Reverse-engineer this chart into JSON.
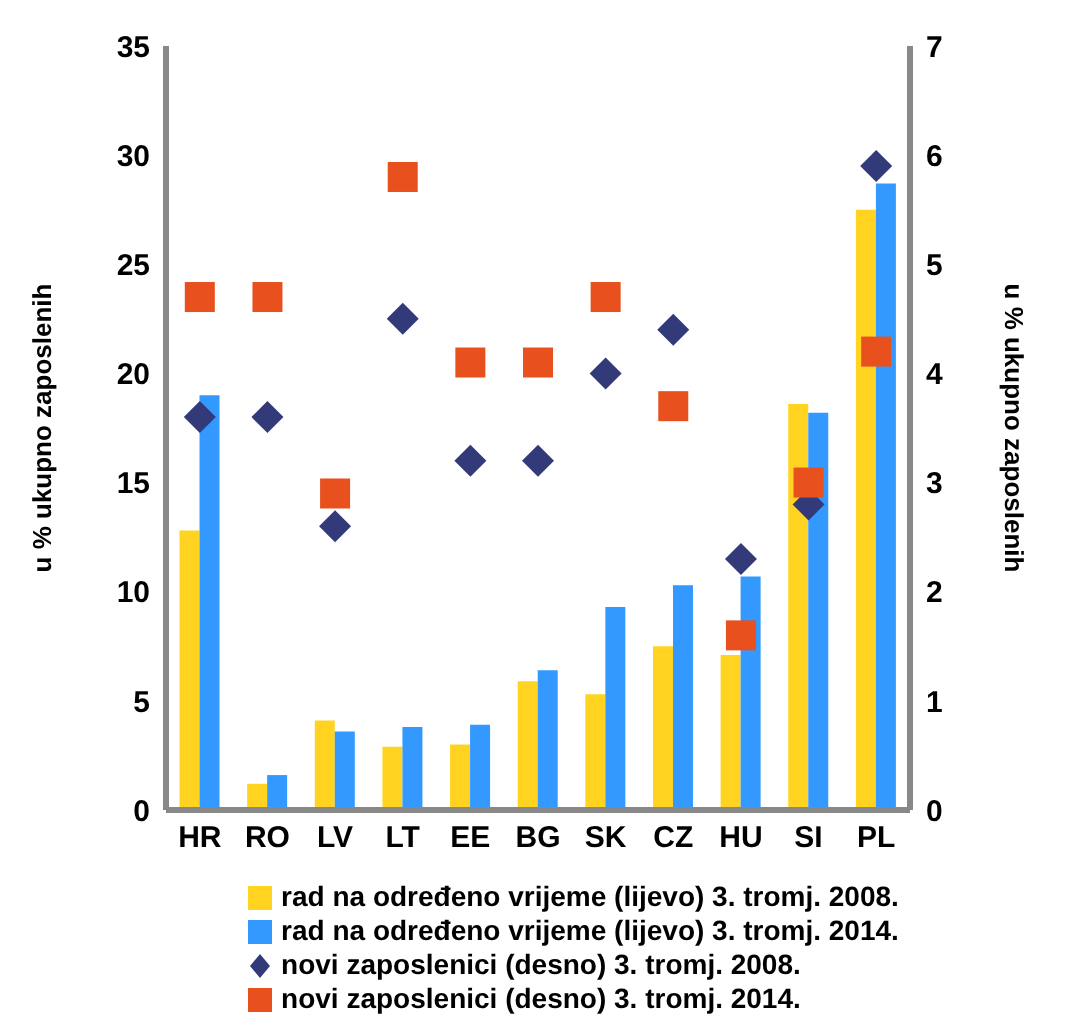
{
  "chart_data": {
    "type": "bar",
    "categories": [
      "HR",
      "RO",
      "LV",
      "LT",
      "EE",
      "BG",
      "SK",
      "CZ",
      "HU",
      "SI",
      "PL"
    ],
    "ylabel": "u % ukupno zaposlenih",
    "y2label": "u % ukupno zaposlenih",
    "ylim": [
      0,
      35
    ],
    "yticks": [
      0,
      5,
      10,
      15,
      20,
      25,
      30,
      35
    ],
    "y2lim": [
      0,
      7
    ],
    "y2ticks": [
      0,
      1,
      2,
      3,
      4,
      5,
      6,
      7
    ],
    "legend": "bottom",
    "grid": false,
    "series": [
      {
        "name": "rad na određeno vrijeme (lijevo) 3. tromj. 2008.",
        "color": "#ffd320",
        "values": [
          12.8,
          1.2,
          4.1,
          2.9,
          3.0,
          5.9,
          5.3,
          7.5,
          7.1,
          18.6,
          27.5
        ]
      },
      {
        "name": "rad na određeno vrijeme (lijevo) 3. tromj. 2014.",
        "color": "#3399ff",
        "values": [
          19.0,
          1.6,
          3.6,
          3.8,
          3.9,
          6.4,
          9.3,
          10.3,
          10.7,
          18.2,
          28.7
        ]
      },
      {
        "name": "novi zaposlenici (desno) 3. tromj. 2008.",
        "type": "scatter",
        "axis": "y2",
        "marker": "diamond",
        "color": "#333a7a",
        "values": [
          3.6,
          3.6,
          2.6,
          4.5,
          3.2,
          3.2,
          4.0,
          4.4,
          2.3,
          2.8,
          5.9
        ]
      },
      {
        "name": "novi zaposlenici (desno) 3. tromj. 2014.",
        "type": "scatter",
        "axis": "y2",
        "marker": "square",
        "color": "#e8501e",
        "values": [
          4.7,
          4.7,
          2.9,
          5.8,
          4.1,
          4.1,
          4.7,
          3.7,
          1.6,
          3.0,
          4.2
        ]
      }
    ]
  }
}
